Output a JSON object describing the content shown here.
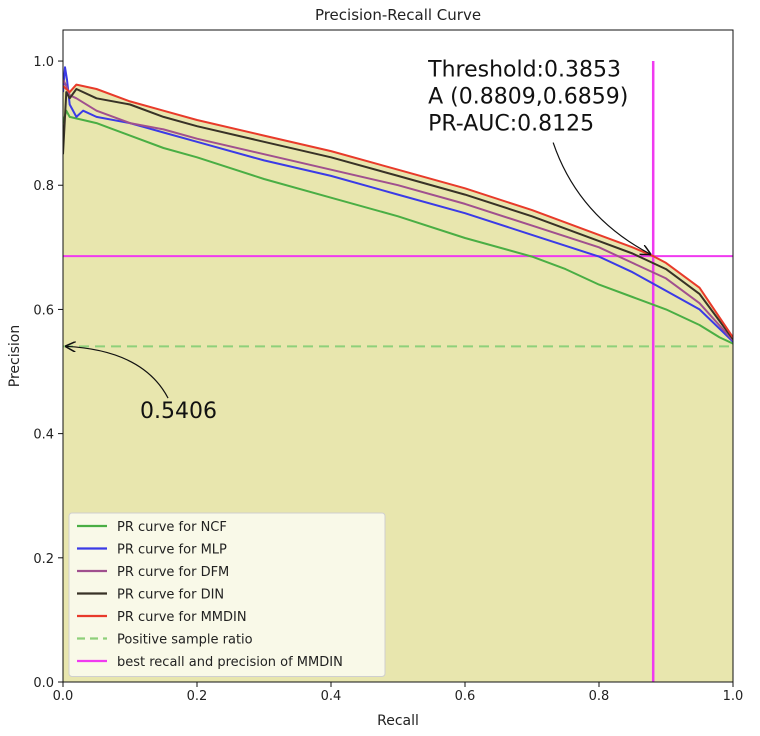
{
  "chart_data": {
    "type": "line",
    "title": "Precision-Recall Curve",
    "xlabel": "Recall",
    "ylabel": "Precision",
    "xlim": [
      0.0,
      1.0
    ],
    "ylim": [
      0.0,
      1.05
    ],
    "xticks": [
      "0.0",
      "0.2",
      "0.4",
      "0.6",
      "0.8",
      "1.0"
    ],
    "yticks": [
      "0.0",
      "0.2",
      "0.4",
      "0.6",
      "0.8",
      "1.0"
    ],
    "grid": false,
    "legend_position": "lower-left",
    "fill_color": "#e8e6ae",
    "series": [
      {
        "name": "PR curve for NCF",
        "color": "#4aae44",
        "x": [
          0,
          0.005,
          0.01,
          0.03,
          0.05,
          0.1,
          0.15,
          0.2,
          0.3,
          0.4,
          0.5,
          0.6,
          0.7,
          0.75,
          0.8,
          0.85,
          0.9,
          0.95,
          0.98,
          1.0
        ],
        "y": [
          0.9,
          0.92,
          0.91,
          0.905,
          0.9,
          0.88,
          0.86,
          0.845,
          0.81,
          0.78,
          0.75,
          0.715,
          0.685,
          0.665,
          0.64,
          0.62,
          0.6,
          0.575,
          0.555,
          0.545
        ]
      },
      {
        "name": "PR curve for MLP",
        "color": "#3b3be6",
        "x": [
          0,
          0.003,
          0.006,
          0.01,
          0.02,
          0.03,
          0.05,
          0.1,
          0.15,
          0.2,
          0.3,
          0.4,
          0.5,
          0.6,
          0.7,
          0.8,
          0.85,
          0.9,
          0.95,
          1.0
        ],
        "y": [
          0.95,
          0.99,
          0.97,
          0.93,
          0.91,
          0.92,
          0.91,
          0.9,
          0.885,
          0.87,
          0.84,
          0.815,
          0.785,
          0.755,
          0.72,
          0.685,
          0.66,
          0.63,
          0.6,
          0.548
        ]
      },
      {
        "name": "PR curve for DFM",
        "color": "#a0508e",
        "x": [
          0,
          0.005,
          0.01,
          0.02,
          0.05,
          0.1,
          0.15,
          0.2,
          0.3,
          0.4,
          0.5,
          0.6,
          0.7,
          0.8,
          0.85,
          0.9,
          0.95,
          1.0
        ],
        "y": [
          0.97,
          0.96,
          0.945,
          0.94,
          0.92,
          0.9,
          0.89,
          0.875,
          0.85,
          0.825,
          0.8,
          0.77,
          0.735,
          0.7,
          0.675,
          0.65,
          0.61,
          0.55
        ]
      },
      {
        "name": "PR curve for DIN",
        "color": "#383226",
        "x": [
          0,
          0.005,
          0.01,
          0.02,
          0.05,
          0.1,
          0.15,
          0.2,
          0.3,
          0.4,
          0.5,
          0.6,
          0.7,
          0.8,
          0.85,
          0.88,
          0.9,
          0.95,
          1.0
        ],
        "y": [
          0.85,
          0.95,
          0.94,
          0.955,
          0.94,
          0.93,
          0.91,
          0.895,
          0.87,
          0.845,
          0.815,
          0.785,
          0.75,
          0.71,
          0.69,
          0.675,
          0.665,
          0.625,
          0.552
        ]
      },
      {
        "name": "PR curve for MMDIN",
        "color": "#e83a2a",
        "x": [
          0,
          0.005,
          0.01,
          0.02,
          0.05,
          0.1,
          0.15,
          0.2,
          0.3,
          0.4,
          0.5,
          0.6,
          0.7,
          0.8,
          0.85,
          0.8809,
          0.9,
          0.95,
          1.0
        ],
        "y": [
          0.96,
          0.955,
          0.95,
          0.962,
          0.955,
          0.935,
          0.92,
          0.905,
          0.88,
          0.855,
          0.825,
          0.795,
          0.76,
          0.72,
          0.7,
          0.6859,
          0.675,
          0.635,
          0.555
        ]
      }
    ],
    "reference_lines": [
      {
        "name": "Positive sample ratio",
        "orientation": "horizontal",
        "value": 0.5406,
        "color": "#8ed07a",
        "dash": true
      },
      {
        "name": "best recall and precision of MMDIN",
        "orientation": "both",
        "x": 0.8809,
        "y": 0.6859,
        "color": "#f03af0",
        "dash": false
      }
    ],
    "annotations": [
      {
        "lines": [
          "Threshold:0.3853",
          "A (0.8809,0.6859)",
          "PR-AUC:0.8125"
        ],
        "point": [
          0.8809,
          0.6859
        ],
        "text_anchor": [
          0.545,
          0.975
        ]
      },
      {
        "lines": [
          "0.5406"
        ],
        "point": [
          0.0,
          0.5406
        ],
        "text_anchor": [
          0.115,
          0.425
        ]
      }
    ],
    "legend": [
      {
        "label": "PR curve for NCF",
        "color": "#4aae44",
        "dash": false
      },
      {
        "label": "PR curve for MLP",
        "color": "#3b3be6",
        "dash": false
      },
      {
        "label": "PR curve for DFM",
        "color": "#a0508e",
        "dash": false
      },
      {
        "label": "PR curve for DIN",
        "color": "#383226",
        "dash": false
      },
      {
        "label": "PR curve for MMDIN",
        "color": "#e83a2a",
        "dash": false
      },
      {
        "label": "Positive sample ratio",
        "color": "#8ed07a",
        "dash": true
      },
      {
        "label": "best recall and precision of MMDIN",
        "color": "#f03af0",
        "dash": false
      }
    ]
  }
}
